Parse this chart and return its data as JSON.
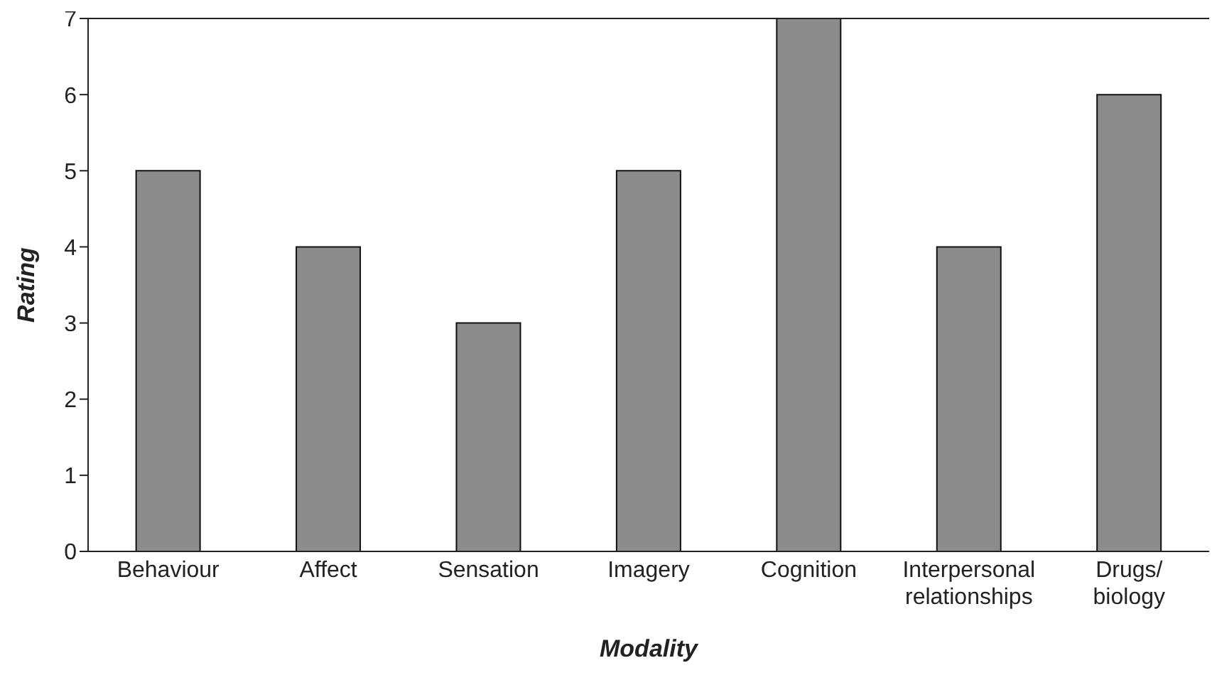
{
  "chart_data": {
    "type": "bar",
    "xlabel": "Modality",
    "ylabel": "Rating",
    "categories": [
      "Behaviour",
      "Affect",
      "Sensation",
      "Imagery",
      "Cognition",
      "Interpersonal relationships",
      "Drugs/biology"
    ],
    "values": [
      5,
      4,
      3,
      5,
      7,
      4,
      6
    ],
    "color": "#8c8c8c",
    "ylim": [
      0,
      7
    ],
    "yticks": [
      0,
      1,
      2,
      3,
      4,
      5,
      6,
      7
    ],
    "grid": false,
    "legend": false
  }
}
